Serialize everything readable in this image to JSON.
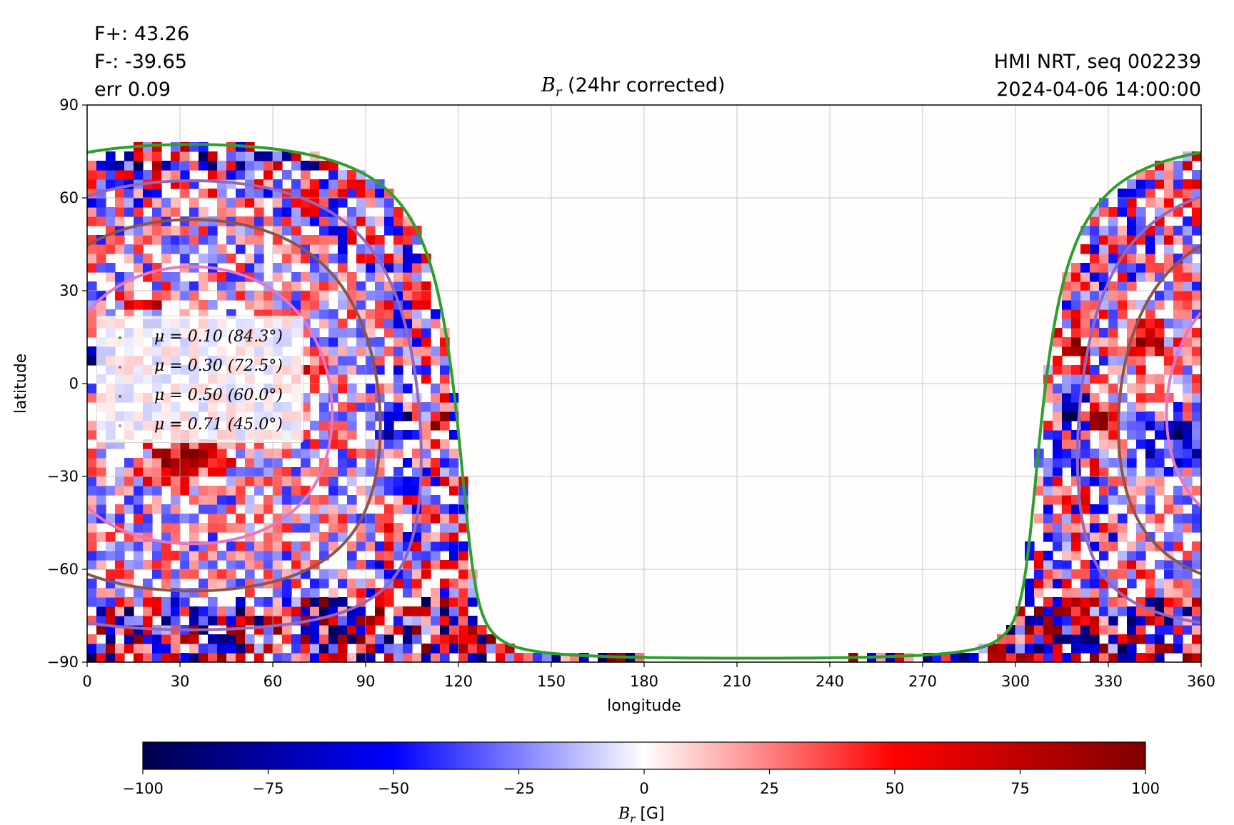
{
  "header": {
    "flux_pos": "F+: 43.26",
    "flux_neg": "F-: -39.65",
    "err": "err 0.09",
    "instrument": "HMI NRT, seq 002239",
    "datetime": "2024-04-06 14:00:00",
    "title_symbol": "B",
    "title_sub": "r",
    "title_rest": " (24hr corrected)"
  },
  "chart_data": {
    "type": "heatmap",
    "title": "Br (24hr corrected)",
    "xlabel": "longitude",
    "ylabel": "latitude",
    "xlim": [
      0,
      360
    ],
    "ylim": [
      -90,
      90
    ],
    "xticks": [
      "0",
      "30",
      "60",
      "90",
      "120",
      "150",
      "180",
      "210",
      "240",
      "270",
      "300",
      "330",
      "360"
    ],
    "yticks": [
      "90",
      "60",
      "30",
      "0",
      "−30",
      "−60",
      "−90"
    ],
    "grid": true,
    "legend_position": "center-left",
    "disk_center_longitude": 34,
    "disk_center_latitude": -7,
    "series": [
      {
        "name": "μ = 0.10 (84.3°)",
        "mu": 0.1,
        "angle_deg": 84.3,
        "color": "#2ca02c"
      },
      {
        "name": "μ = 0.30 (72.5°)",
        "mu": 0.3,
        "angle_deg": 72.5,
        "color": "#9467bd"
      },
      {
        "name": "μ = 0.50 (60.0°)",
        "mu": 0.5,
        "angle_deg": 60.0,
        "color": "#8c564b"
      },
      {
        "name": "μ = 0.71 (45.0°)",
        "mu": 0.71,
        "angle_deg": 45.0,
        "color": "#e377c2"
      }
    ],
    "colorbar": {
      "label_symbol": "B",
      "label_sub": "r",
      "label_unit": " [G]",
      "vmin": -100,
      "vmax": 100,
      "ticks": [
        "−100",
        "−75",
        "−50",
        "−25",
        "0",
        "25",
        "50",
        "75",
        "100"
      ],
      "colormap": "seismic",
      "colors": [
        "#00004c",
        "#0000ff",
        "#ffffff",
        "#ff0000",
        "#800000"
      ]
    }
  }
}
